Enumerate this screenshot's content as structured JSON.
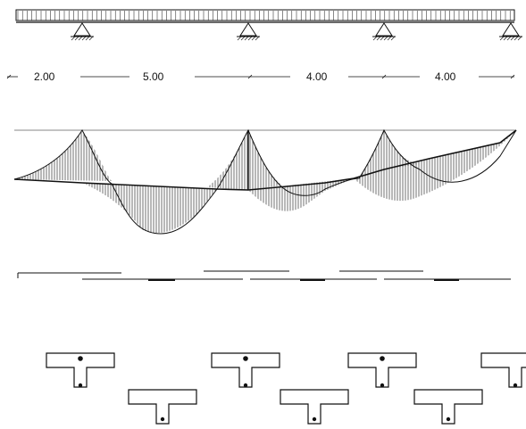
{
  "beam": {
    "span_lengths": [
      "2.00",
      "5.00",
      "4.00",
      "4.00"
    ],
    "supports": 4,
    "load": "uniformly distributed"
  },
  "moment_diagram": {
    "hatching": "vertical"
  },
  "sections": {
    "shape": "T-section",
    "count": 7
  },
  "colors": {
    "ink": "#111111",
    "background": "#ffffff"
  }
}
